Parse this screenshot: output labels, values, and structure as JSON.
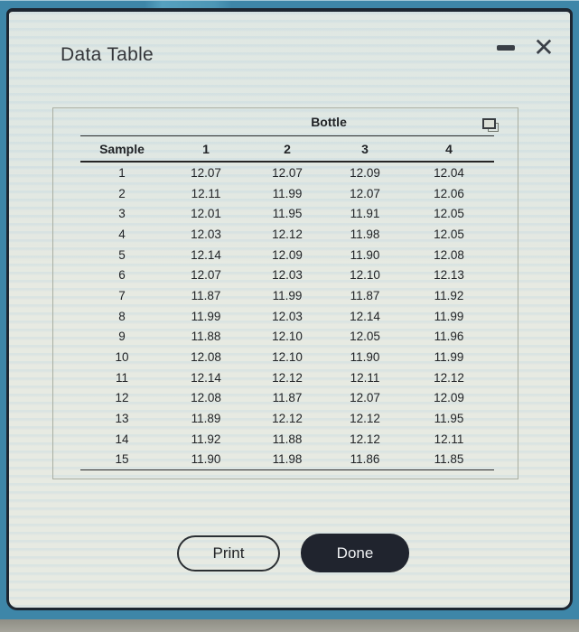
{
  "window": {
    "title": "Data Table",
    "close_glyph": "✕"
  },
  "table": {
    "group_header": "Bottle",
    "columns": [
      "Sample",
      "1",
      "2",
      "3",
      "4"
    ],
    "rows": [
      [
        "1",
        "12.07",
        "12.07",
        "12.09",
        "12.04"
      ],
      [
        "2",
        "12.11",
        "11.99",
        "12.07",
        "12.06"
      ],
      [
        "3",
        "12.01",
        "11.95",
        "11.91",
        "12.05"
      ],
      [
        "4",
        "12.03",
        "12.12",
        "11.98",
        "12.05"
      ],
      [
        "5",
        "12.14",
        "12.09",
        "11.90",
        "12.08"
      ],
      [
        "6",
        "12.07",
        "12.03",
        "12.10",
        "12.13"
      ],
      [
        "7",
        "11.87",
        "11.99",
        "11.87",
        "11.92"
      ],
      [
        "8",
        "11.99",
        "12.03",
        "12.14",
        "11.99"
      ],
      [
        "9",
        "11.88",
        "12.10",
        "12.05",
        "11.96"
      ],
      [
        "10",
        "12.08",
        "12.10",
        "11.90",
        "11.99"
      ],
      [
        "11",
        "12.14",
        "12.12",
        "12.11",
        "12.12"
      ],
      [
        "12",
        "12.08",
        "11.87",
        "12.07",
        "12.09"
      ],
      [
        "13",
        "11.89",
        "12.12",
        "12.12",
        "11.95"
      ],
      [
        "14",
        "11.92",
        "11.88",
        "12.12",
        "12.11"
      ],
      [
        "15",
        "11.90",
        "11.98",
        "11.86",
        "11.85"
      ]
    ]
  },
  "buttons": {
    "print": "Print",
    "done": "Done"
  },
  "colors": {
    "desktop_blue": "#3e86a8",
    "dialog_bg": "#e7eae2",
    "dialog_border": "#1d2631",
    "done_button_bg": "#20242e",
    "text": "#212326",
    "bottom_band_gray": "#9a9990"
  },
  "icons": {
    "popout": "popout-window-icon",
    "minimize": "minimize-icon",
    "close": "close-icon"
  }
}
